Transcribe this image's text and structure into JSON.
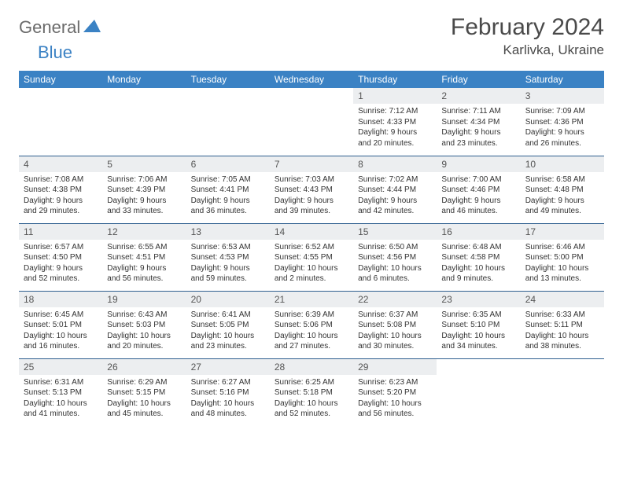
{
  "brand": {
    "t1": "General",
    "t2": "Blue"
  },
  "title": "February 2024",
  "location": "Karlivka, Ukraine",
  "colors": {
    "header_bg": "#3b82c4",
    "header_text": "#ffffff",
    "daynum_bg": "#eceef0",
    "border": "#2f5f8f",
    "logo_blue": "#3b82c4",
    "logo_gray": "#6b6b6b"
  },
  "weekdays": [
    "Sunday",
    "Monday",
    "Tuesday",
    "Wednesday",
    "Thursday",
    "Friday",
    "Saturday"
  ],
  "weeks": [
    [
      null,
      null,
      null,
      null,
      {
        "d": "1",
        "sr": "7:12 AM",
        "ss": "4:33 PM",
        "dl": "9 hours and 20 minutes."
      },
      {
        "d": "2",
        "sr": "7:11 AM",
        "ss": "4:34 PM",
        "dl": "9 hours and 23 minutes."
      },
      {
        "d": "3",
        "sr": "7:09 AM",
        "ss": "4:36 PM",
        "dl": "9 hours and 26 minutes."
      }
    ],
    [
      {
        "d": "4",
        "sr": "7:08 AM",
        "ss": "4:38 PM",
        "dl": "9 hours and 29 minutes."
      },
      {
        "d": "5",
        "sr": "7:06 AM",
        "ss": "4:39 PM",
        "dl": "9 hours and 33 minutes."
      },
      {
        "d": "6",
        "sr": "7:05 AM",
        "ss": "4:41 PM",
        "dl": "9 hours and 36 minutes."
      },
      {
        "d": "7",
        "sr": "7:03 AM",
        "ss": "4:43 PM",
        "dl": "9 hours and 39 minutes."
      },
      {
        "d": "8",
        "sr": "7:02 AM",
        "ss": "4:44 PM",
        "dl": "9 hours and 42 minutes."
      },
      {
        "d": "9",
        "sr": "7:00 AM",
        "ss": "4:46 PM",
        "dl": "9 hours and 46 minutes."
      },
      {
        "d": "10",
        "sr": "6:58 AM",
        "ss": "4:48 PM",
        "dl": "9 hours and 49 minutes."
      }
    ],
    [
      {
        "d": "11",
        "sr": "6:57 AM",
        "ss": "4:50 PM",
        "dl": "9 hours and 52 minutes."
      },
      {
        "d": "12",
        "sr": "6:55 AM",
        "ss": "4:51 PM",
        "dl": "9 hours and 56 minutes."
      },
      {
        "d": "13",
        "sr": "6:53 AM",
        "ss": "4:53 PM",
        "dl": "9 hours and 59 minutes."
      },
      {
        "d": "14",
        "sr": "6:52 AM",
        "ss": "4:55 PM",
        "dl": "10 hours and 2 minutes."
      },
      {
        "d": "15",
        "sr": "6:50 AM",
        "ss": "4:56 PM",
        "dl": "10 hours and 6 minutes."
      },
      {
        "d": "16",
        "sr": "6:48 AM",
        "ss": "4:58 PM",
        "dl": "10 hours and 9 minutes."
      },
      {
        "d": "17",
        "sr": "6:46 AM",
        "ss": "5:00 PM",
        "dl": "10 hours and 13 minutes."
      }
    ],
    [
      {
        "d": "18",
        "sr": "6:45 AM",
        "ss": "5:01 PM",
        "dl": "10 hours and 16 minutes."
      },
      {
        "d": "19",
        "sr": "6:43 AM",
        "ss": "5:03 PM",
        "dl": "10 hours and 20 minutes."
      },
      {
        "d": "20",
        "sr": "6:41 AM",
        "ss": "5:05 PM",
        "dl": "10 hours and 23 minutes."
      },
      {
        "d": "21",
        "sr": "6:39 AM",
        "ss": "5:06 PM",
        "dl": "10 hours and 27 minutes."
      },
      {
        "d": "22",
        "sr": "6:37 AM",
        "ss": "5:08 PM",
        "dl": "10 hours and 30 minutes."
      },
      {
        "d": "23",
        "sr": "6:35 AM",
        "ss": "5:10 PM",
        "dl": "10 hours and 34 minutes."
      },
      {
        "d": "24",
        "sr": "6:33 AM",
        "ss": "5:11 PM",
        "dl": "10 hours and 38 minutes."
      }
    ],
    [
      {
        "d": "25",
        "sr": "6:31 AM",
        "ss": "5:13 PM",
        "dl": "10 hours and 41 minutes."
      },
      {
        "d": "26",
        "sr": "6:29 AM",
        "ss": "5:15 PM",
        "dl": "10 hours and 45 minutes."
      },
      {
        "d": "27",
        "sr": "6:27 AM",
        "ss": "5:16 PM",
        "dl": "10 hours and 48 minutes."
      },
      {
        "d": "28",
        "sr": "6:25 AM",
        "ss": "5:18 PM",
        "dl": "10 hours and 52 minutes."
      },
      {
        "d": "29",
        "sr": "6:23 AM",
        "ss": "5:20 PM",
        "dl": "10 hours and 56 minutes."
      },
      null,
      null
    ]
  ],
  "labels": {
    "sunrise": "Sunrise:",
    "sunset": "Sunset:",
    "daylight": "Daylight:"
  }
}
